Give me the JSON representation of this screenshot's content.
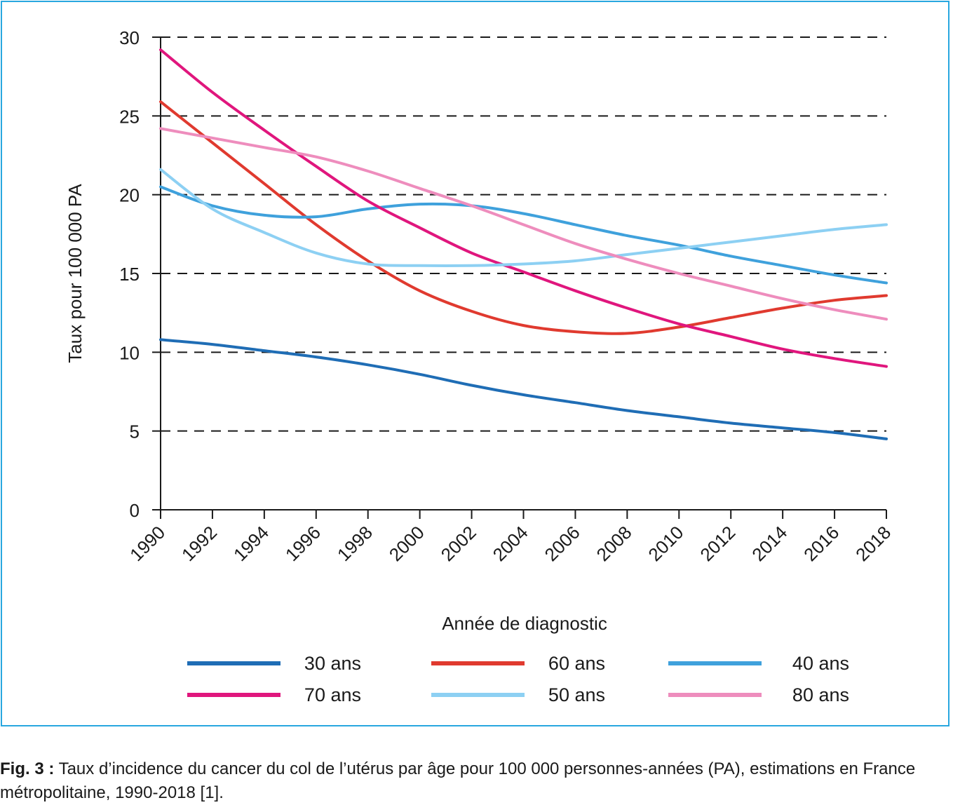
{
  "chart_data": {
    "type": "line",
    "xlabel": "Année de diagnostic",
    "ylabel": "Taux pour 100 000 PA",
    "xlim": [
      1990,
      2018
    ],
    "ylim": [
      0,
      30
    ],
    "x_ticks": [
      "1990",
      "1992",
      "1994",
      "1996",
      "1998",
      "2000",
      "2002",
      "2004",
      "2006",
      "2008",
      "2010",
      "2012",
      "2014",
      "2016",
      "2018"
    ],
    "y_ticks": [
      "0",
      "5",
      "10",
      "15",
      "20",
      "25",
      "30"
    ],
    "grid": "dashed horizontal",
    "legend_position": "bottom",
    "x": [
      1990,
      1992,
      1994,
      1996,
      1998,
      2000,
      2002,
      2004,
      2006,
      2008,
      2010,
      2012,
      2014,
      2016,
      2018
    ],
    "series": [
      {
        "name": "30 ans",
        "color": "#1f6db5",
        "values": [
          10.8,
          10.5,
          10.1,
          9.7,
          9.2,
          8.6,
          7.9,
          7.3,
          6.8,
          6.3,
          5.9,
          5.5,
          5.2,
          4.9,
          4.5
        ]
      },
      {
        "name": "60 ans",
        "color": "#e03a2f",
        "values": [
          25.9,
          23.3,
          20.7,
          18.1,
          15.8,
          13.9,
          12.6,
          11.7,
          11.3,
          11.2,
          11.6,
          12.2,
          12.8,
          13.3,
          13.6
        ]
      },
      {
        "name": "40 ans",
        "color": "#3fa1dc",
        "values": [
          20.5,
          19.3,
          18.7,
          18.6,
          19.1,
          19.4,
          19.3,
          18.8,
          18.1,
          17.4,
          16.8,
          16.1,
          15.5,
          14.9,
          14.4
        ]
      },
      {
        "name": "70 ans",
        "color": "#e0167d",
        "values": [
          29.2,
          26.5,
          24.1,
          21.8,
          19.6,
          17.9,
          16.3,
          15.1,
          13.9,
          12.8,
          11.8,
          11.0,
          10.2,
          9.6,
          9.1
        ]
      },
      {
        "name": "50 ans",
        "color": "#8dd0f3",
        "values": [
          21.6,
          19.1,
          17.6,
          16.3,
          15.6,
          15.5,
          15.5,
          15.6,
          15.8,
          16.2,
          16.6,
          17.0,
          17.4,
          17.8,
          18.1
        ]
      },
      {
        "name": "80 ans",
        "color": "#ee8dbd",
        "values": [
          24.2,
          23.6,
          23.0,
          22.4,
          21.5,
          20.4,
          19.3,
          18.1,
          16.9,
          15.9,
          15.0,
          14.2,
          13.4,
          12.7,
          12.1
        ]
      }
    ]
  },
  "caption": {
    "label": "Fig. 3 :",
    "text": " Taux d’incidence du cancer du col de l’utérus par âge pour 100 000 personnes-années (PA), estimations en France métropolitaine, 1990-2018 [1]."
  }
}
